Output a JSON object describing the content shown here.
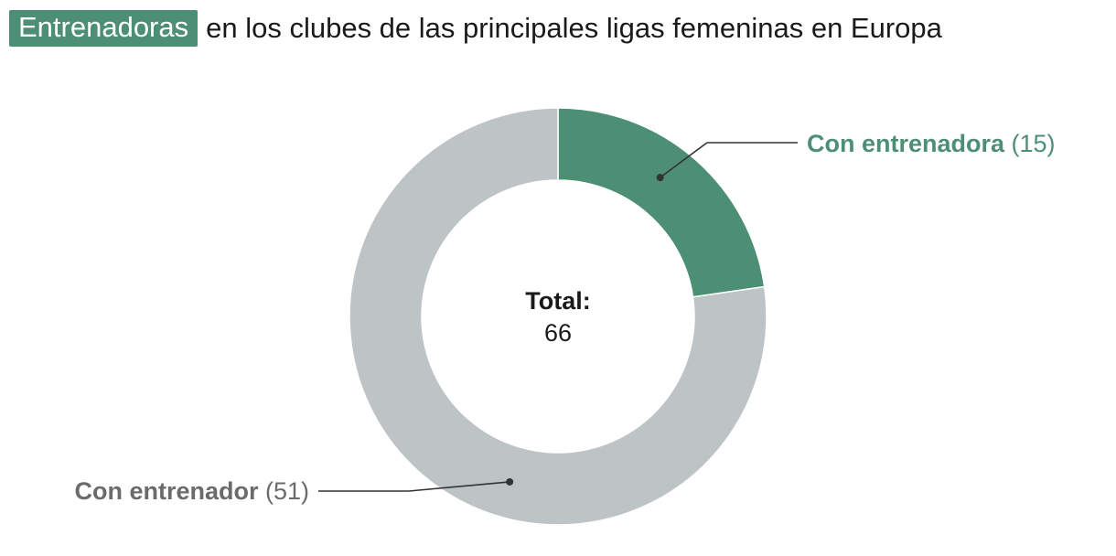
{
  "title": {
    "highlight": "Entrenadoras",
    "rest": "en los clubes de las principales ligas femeninas en Europa"
  },
  "colors": {
    "female": "#4d8f74",
    "male": "#bec3c6",
    "male_label": "#6b6b6b",
    "leader": "#333333",
    "text": "#1a1a1a"
  },
  "chart_data": {
    "type": "pie",
    "categories": [
      "Con entrenadora",
      "Con entrenador"
    ],
    "values": [
      15,
      51
    ],
    "total_label": "Total:",
    "total_value": "66",
    "labels": [
      {
        "name": "Con entrenadora",
        "count": "(15)"
      },
      {
        "name": "Con entrenador",
        "count": "(51)"
      }
    ]
  }
}
